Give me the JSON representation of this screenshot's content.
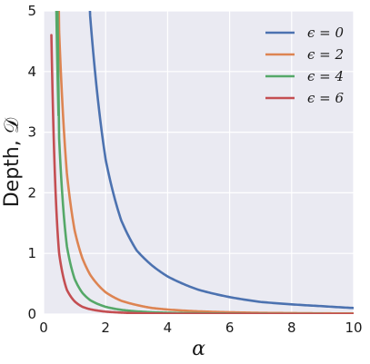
{
  "chart_data": {
    "type": "line",
    "title": "",
    "xlabel": "α",
    "ylabel": "Depth, 𝒟",
    "xlim": [
      0,
      10
    ],
    "ylim": [
      0,
      5
    ],
    "x_ticks": [
      "0",
      "2",
      "4",
      "6",
      "8",
      "10"
    ],
    "y_ticks": [
      "0",
      "1",
      "2",
      "3",
      "4",
      "5"
    ],
    "grid": true,
    "legend_position": "top-right",
    "background": "#EAEAF2",
    "x": [
      0.25,
      0.5,
      0.75,
      1.0,
      1.25,
      1.5,
      2.0,
      2.5,
      3.0,
      3.5,
      4.0,
      5.0,
      6.0,
      7.0,
      8.0,
      9.0,
      10.0
    ],
    "series": [
      {
        "name": "ϵ = 0",
        "color": "#4C72B0",
        "values": [
          null,
          null,
          null,
          null,
          null,
          4.92,
          2.55,
          1.55,
          1.05,
          0.8,
          0.62,
          0.4,
          0.28,
          0.2,
          0.16,
          0.13,
          0.1
        ]
      },
      {
        "name": "ϵ = 2",
        "color": "#DD8452",
        "values": [
          null,
          4.66,
          2.32,
          1.38,
          0.92,
          0.65,
          0.36,
          0.22,
          0.15,
          0.1,
          0.075,
          0.045,
          0.03,
          0.02,
          0.016,
          0.012,
          0.01
        ]
      },
      {
        "name": "ϵ = 4",
        "color": "#55A868",
        "values": [
          null,
          2.9,
          1.12,
          0.58,
          0.35,
          0.23,
          0.12,
          0.07,
          0.045,
          0.03,
          0.022,
          0.013,
          0.009,
          0.006,
          0.005,
          0.004,
          0.003
        ]
      },
      {
        "name": "ϵ = 6",
        "color": "#C44E52",
        "values": [
          4.6,
          1.0,
          0.4,
          0.21,
          0.12,
          0.08,
          0.04,
          0.024,
          0.015,
          0.01,
          0.007,
          0.004,
          0.003,
          0.002,
          0.0015,
          0.001,
          0.001
        ]
      }
    ]
  }
}
